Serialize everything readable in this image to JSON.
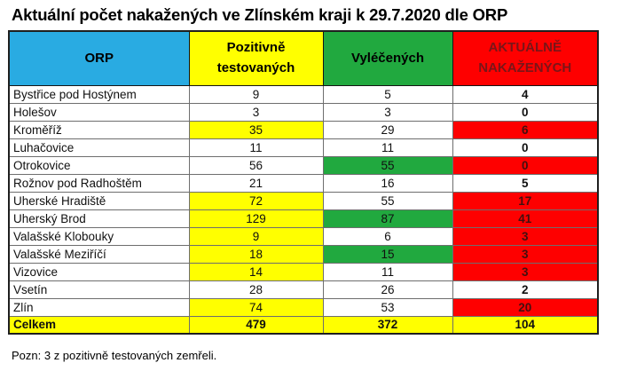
{
  "colors": {
    "header_orp_bg": "#29ABE2",
    "col_yellow": "#FFFF00",
    "col_green": "#21A93F",
    "col_red": "#FE0000",
    "header_active_text": "#7A1518",
    "red_cell_text": "#43100F"
  },
  "chart_data": {
    "type": "table",
    "title": "Aktuální počet nakažených ve Zlínském kraji k 29.7.2020 dle ORP",
    "note": "Pozn: 3 z pozitivně testovaných zemřeli.",
    "columns": [
      "ORP",
      "Pozitivně testovaných",
      "Vyléčených",
      "AKTUÁLNĚ NAKAŽENÝCH"
    ],
    "rows": [
      {
        "orp": "Bystřice pod Hostýnem",
        "positive": 9,
        "cured": 5,
        "active": 4,
        "orp_bg": "white",
        "positive_bg": "white",
        "cured_bg": "white",
        "active_bg": "white",
        "is_total": false
      },
      {
        "orp": "Holešov",
        "positive": 3,
        "cured": 3,
        "active": 0,
        "orp_bg": "white",
        "positive_bg": "white",
        "cured_bg": "white",
        "active_bg": "white",
        "is_total": false
      },
      {
        "orp": "Kroměříž",
        "positive": 35,
        "cured": 29,
        "active": 6,
        "orp_bg": "white",
        "positive_bg": "yellow",
        "cured_bg": "white",
        "active_bg": "red",
        "is_total": false
      },
      {
        "orp": "Luhačovice",
        "positive": 11,
        "cured": 11,
        "active": 0,
        "orp_bg": "white",
        "positive_bg": "white",
        "cured_bg": "white",
        "active_bg": "white",
        "is_total": false
      },
      {
        "orp": "Otrokovice",
        "positive": 56,
        "cured": 55,
        "active": 0,
        "orp_bg": "white",
        "positive_bg": "white",
        "cured_bg": "green",
        "active_bg": "red",
        "is_total": false
      },
      {
        "orp": "Rožnov pod Radhoštěm",
        "positive": 21,
        "cured": 16,
        "active": 5,
        "orp_bg": "white",
        "positive_bg": "white",
        "cured_bg": "white",
        "active_bg": "white",
        "is_total": false
      },
      {
        "orp": "Uherské Hradiště",
        "positive": 72,
        "cured": 55,
        "active": 17,
        "orp_bg": "white",
        "positive_bg": "yellow",
        "cured_bg": "white",
        "active_bg": "red",
        "is_total": false
      },
      {
        "orp": "Uherský Brod",
        "positive": 129,
        "cured": 87,
        "active": 41,
        "orp_bg": "white",
        "positive_bg": "yellow",
        "cured_bg": "green",
        "active_bg": "red",
        "is_total": false
      },
      {
        "orp": "Valašské Klobouky",
        "positive": 9,
        "cured": 6,
        "active": 3,
        "orp_bg": "white",
        "positive_bg": "yellow",
        "cured_bg": "white",
        "active_bg": "red",
        "is_total": false
      },
      {
        "orp": "Valašské Meziříčí",
        "positive": 18,
        "cured": 15,
        "active": 3,
        "orp_bg": "white",
        "positive_bg": "yellow",
        "cured_bg": "green",
        "active_bg": "red",
        "is_total": false
      },
      {
        "orp": "Vizovice",
        "positive": 14,
        "cured": 11,
        "active": 3,
        "orp_bg": "white",
        "positive_bg": "yellow",
        "cured_bg": "white",
        "active_bg": "red",
        "is_total": false
      },
      {
        "orp": "Vsetín",
        "positive": 28,
        "cured": 26,
        "active": 2,
        "orp_bg": "white",
        "positive_bg": "white",
        "cured_bg": "white",
        "active_bg": "white",
        "is_total": false
      },
      {
        "orp": "Zlín",
        "positive": 74,
        "cured": 53,
        "active": 20,
        "orp_bg": "white",
        "positive_bg": "yellow",
        "cured_bg": "white",
        "active_bg": "red",
        "is_total": false
      },
      {
        "orp": "Celkem",
        "positive": 479,
        "cured": 372,
        "active": 104,
        "orp_bg": "yellow",
        "positive_bg": "yellow",
        "cured_bg": "yellow",
        "active_bg": "yellow",
        "is_total": true
      }
    ]
  }
}
